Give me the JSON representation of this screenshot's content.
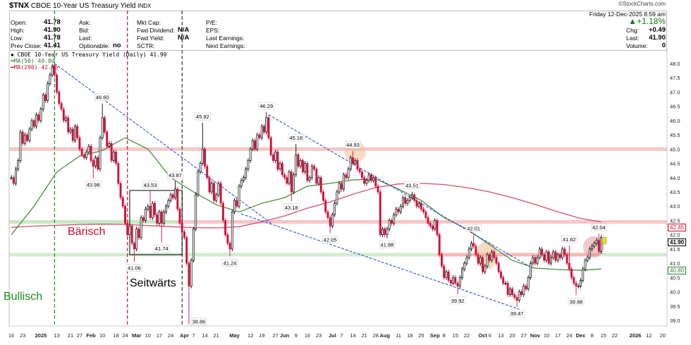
{
  "header": {
    "symbol": "$TNX",
    "name": "CBOE 10-Year US Treasury Yield",
    "exchange": "INDX",
    "copyright": "©StockCharts.com",
    "date": "Friday  12-Dec-2025  8:59 am",
    "change_pct": "+1.18%",
    "change_color": "#1a7a1a",
    "fields": {
      "open_label": "Open:",
      "open": "41.78",
      "high_label": "High:",
      "high": "41.90",
      "low_label": "Low:",
      "low": "41.78",
      "prev_close_label": "Prev Close:",
      "prev_close": "41.41",
      "ask_label": "Ask:",
      "bid_label": "Bid:",
      "last_label_mid": "Last:",
      "optionable_label": "Optionable:",
      "optionable": "no",
      "mktcap_label": "Mkt Cap:",
      "fwd_div_label": "Fwd Dividend:",
      "fwd_div": "N/A",
      "fwd_yield_label": "Fwd Yield:",
      "fwd_yield": "N/A",
      "sctr_label": "SCTR:",
      "pe_label": "P/E:",
      "eps_label": "EPS:",
      "last_earn_label": "Last Earnings:",
      "next_earn_label": "Next Earnings:",
      "chg_label": "Chg:",
      "chg": "+0.49",
      "last_label": "Last:",
      "last": "41.90",
      "volume_label": "Volume:",
      "volume": "0"
    }
  },
  "legend": {
    "price": "CBOE 10-Year US Treasury Yield (Daily) 41.90",
    "ma50": "MA(50) 40.80",
    "ma200": "MA(200) 42.45"
  },
  "notes": {
    "bullish": "Bullisch",
    "bearish": "Bärisch",
    "sideways": "Seitwärts"
  },
  "axis_tags": {
    "ma200": "42.45",
    "last": "41.90",
    "ma50": "40.80"
  },
  "chart_data": {
    "type": "candlestick",
    "interval": "daily",
    "ylim": [
      39.0,
      48.0
    ],
    "y_ticks": [
      "39.0",
      "39.5",
      "40.0",
      "40.5",
      "41.0",
      "41.5",
      "42.0",
      "42.5",
      "43.0",
      "43.5",
      "44.0",
      "44.5",
      "45.0",
      "45.5",
      "46.0",
      "46.5",
      "47.0",
      "47.5",
      "48.0"
    ],
    "x_ticks": [
      "16",
      "23",
      "2025",
      "13",
      "21",
      "27",
      "Feb",
      "10",
      "18",
      "24",
      "Mar",
      "10",
      "17",
      "24",
      "Apr",
      "7",
      "14",
      "21",
      "May",
      "12",
      "19",
      "27",
      "Jun",
      "9",
      "16",
      "23",
      "Jul",
      "7",
      "14",
      "21",
      "28",
      "Aug",
      "11",
      "18",
      "25",
      "Sep",
      "8",
      "15",
      "22",
      "Oct",
      "6",
      "13",
      "20",
      "27",
      "Nov",
      "10",
      "17",
      "24",
      "Dec",
      "8",
      "15",
      "22",
      "2026",
      "12",
      "20"
    ],
    "colors": {
      "up": "#000000",
      "down": "#d0103a",
      "ma50": "#4a8f3c",
      "ma200": "#d0506a",
      "trendline": "#1f3fe0"
    },
    "closes": [
      44.0,
      43.8,
      44.3,
      44.6,
      45.6,
      45.2,
      45.5,
      45.3,
      45.7,
      46.0,
      45.8,
      46.2,
      46.0,
      46.4,
      46.9,
      46.7,
      47.3,
      47.6,
      47.9,
      47.6,
      47.0,
      46.6,
      46.4,
      46.0,
      46.1,
      45.6,
      45.7,
      45.3,
      45.8,
      45.4,
      45.0,
      44.8,
      44.7,
      44.9,
      45.1,
      44.6,
      44.4,
      44.7,
      44.3,
      45.4,
      46.1,
      45.6,
      45.1,
      45.2,
      44.6,
      44.9,
      44.5,
      43.8,
      43.3,
      43.0,
      42.4,
      42.0,
      42.3,
      41.7,
      41.5,
      42.2,
      41.9,
      42.6,
      42.5,
      42.9,
      43.0,
      42.6,
      43.1,
      42.7,
      42.4,
      42.8,
      42.4,
      42.8,
      43.0,
      43.2,
      43.4,
      43.3,
      43.6,
      42.9,
      42.4,
      42.1,
      41.9,
      41.0,
      40.2,
      41.1,
      42.2,
      43.4,
      44.2,
      44.5,
      45.0,
      44.4,
      44.0,
      43.5,
      43.8,
      43.2,
      43.4,
      43.8,
      43.1,
      42.5,
      42.0,
      41.7,
      41.5,
      42.8,
      43.2,
      43.0,
      43.7,
      43.9,
      44.0,
      44.3,
      44.6,
      45.0,
      45.3,
      45.0,
      45.5,
      45.4,
      45.8,
      45.6,
      46.1,
      45.4,
      44.8,
      44.6,
      44.9,
      44.3,
      44.5,
      44.1,
      44.0,
      43.8,
      44.2,
      43.5,
      44.1,
      44.8,
      44.4,
      44.6,
      44.2,
      44.5,
      43.9,
      44.0,
      44.4,
      44.3,
      43.8,
      44.0,
      43.5,
      43.2,
      42.8,
      42.6,
      42.3,
      42.7,
      43.1,
      43.5,
      43.8,
      43.6,
      44.1,
      44.0,
      44.3,
      44.7,
      44.5,
      44.6,
      44.3,
      44.2,
      44.0,
      43.8,
      43.9,
      44.1,
      43.9,
      44.0,
      43.7,
      43.5,
      42.0,
      42.2,
      42.0,
      42.2,
      42.5,
      42.4,
      42.7,
      42.9,
      42.8,
      43.0,
      43.3,
      43.1,
      43.2,
      43.3,
      43.4,
      43.2,
      43.0,
      43.1,
      42.9,
      42.8,
      42.6,
      42.4,
      42.3,
      42.2,
      42.5,
      42.0,
      41.3,
      40.9,
      40.5,
      40.7,
      40.4,
      40.3,
      40.5,
      40.3,
      40.2,
      40.5,
      40.8,
      41.0,
      41.2,
      41.5,
      41.7,
      41.6,
      41.3,
      41.0,
      41.2,
      40.7,
      40.9,
      41.3,
      41.1,
      41.4,
      41.2,
      41.0,
      40.7,
      40.5,
      40.3,
      40.3,
      39.9,
      40.1,
      39.9,
      39.8,
      39.7,
      40.0,
      39.9,
      40.2,
      40.1,
      40.5,
      41.0,
      41.2,
      41.0,
      41.2,
      41.5,
      41.3,
      41.1,
      41.4,
      41.0,
      41.2,
      41.4,
      41.1,
      41.3,
      41.2,
      41.5,
      41.3,
      41.0,
      40.8,
      40.5,
      40.3,
      40.2,
      40.2,
      40.4,
      40.8,
      41.1,
      41.2,
      41.5,
      41.6,
      41.7,
      41.8,
      41.41,
      41.9
    ],
    "ma50_every_10_bars": [
      42.0,
      43.0,
      44.2,
      44.75,
      44.95,
      45.4,
      45.0,
      44.0,
      43.5,
      43.05,
      42.8,
      43.1,
      43.3,
      43.7,
      43.8,
      43.92,
      43.95,
      43.6,
      43.2,
      42.6,
      42.2,
      41.65,
      41.1,
      40.83,
      40.78,
      40.75,
      40.8
    ],
    "ma200_every_10_bars": [
      42.26,
      42.3,
      42.33,
      42.36,
      42.37,
      42.36,
      42.32,
      42.28,
      42.25,
      42.24,
      42.28,
      42.45,
      42.66,
      42.93,
      43.15,
      43.42,
      43.65,
      43.78,
      43.8,
      43.76,
      43.65,
      43.5,
      43.3,
      43.06,
      42.8,
      42.57,
      42.45
    ],
    "annotations": [
      {
        "bar": 40,
        "value": "46.60",
        "type": "high"
      },
      {
        "bar": 36,
        "value": "43.98",
        "type": "low"
      },
      {
        "bar": 54,
        "value": "41.06",
        "type": "low"
      },
      {
        "bar": 61,
        "value": "43.53",
        "type": "high"
      },
      {
        "bar": 72,
        "value": "43.87",
        "type": "high"
      },
      {
        "bar": 66,
        "value": "41.74",
        "type": "low"
      },
      {
        "bar": 84,
        "value": "45.92",
        "type": "high"
      },
      {
        "bar": 78,
        "value": "38.86",
        "type": "low"
      },
      {
        "bar": 96,
        "value": "41.24",
        "type": "low"
      },
      {
        "bar": 112,
        "value": "46.29",
        "type": "high"
      },
      {
        "bar": 125,
        "value": "45.18",
        "type": "high"
      },
      {
        "bar": 123,
        "value": "43.18",
        "type": "low"
      },
      {
        "bar": 150,
        "value": "44.93",
        "type": "high"
      },
      {
        "bar": 140,
        "value": "42.05",
        "type": "low"
      },
      {
        "bar": 165,
        "value": "41.88",
        "type": "low"
      },
      {
        "bar": 176,
        "value": "43.51",
        "type": "high"
      },
      {
        "bar": 203,
        "value": "42.01",
        "type": "high"
      },
      {
        "bar": 196,
        "value": "39.92",
        "type": "low"
      },
      {
        "bar": 222,
        "value": "39.47",
        "type": "low"
      },
      {
        "bar": 245,
        "value": "41.62",
        "type": "high"
      },
      {
        "bar": 248,
        "value": "39.88",
        "type": "low"
      },
      {
        "bar": 258,
        "value": "42.04",
        "type": "high"
      }
    ],
    "trendlines": [
      {
        "from": [
          19,
          48.0
        ],
        "to": [
          114,
          42.41
        ]
      },
      {
        "from": [
          113,
          46.2
        ],
        "to": [
          229,
          40.82
        ]
      },
      {
        "from": [
          101,
          42.73
        ],
        "to": [
          223,
          39.39
        ]
      }
    ],
    "levels": [
      {
        "value": 45.0,
        "color": "#f4b8b8"
      },
      {
        "value": 42.45,
        "color": "#f4b8b8",
        "green_until_bar": 72
      },
      {
        "value": 41.3,
        "color": "#c8e6c4",
        "pink_from_bar": 187,
        "pink_to_bar": 258
      }
    ],
    "vertical_markers": [
      {
        "bar": 19,
        "color": "#1a8a1a"
      },
      {
        "bar": 51,
        "color": "#c8102e"
      },
      {
        "bar": 75,
        "color": "#333333"
      }
    ],
    "range_box": {
      "from_bar": 52,
      "to_bar": 75,
      "low": 41.3,
      "high": 43.55
    },
    "highlight_circles": [
      {
        "bar": 151,
        "value": 44.9,
        "color": "#f0c090"
      },
      {
        "bar": 208.7,
        "value": 41.27,
        "color": "#f0c090"
      },
      {
        "bar": 255.7,
        "value": 41.57,
        "color": "#e89a9a"
      }
    ]
  }
}
